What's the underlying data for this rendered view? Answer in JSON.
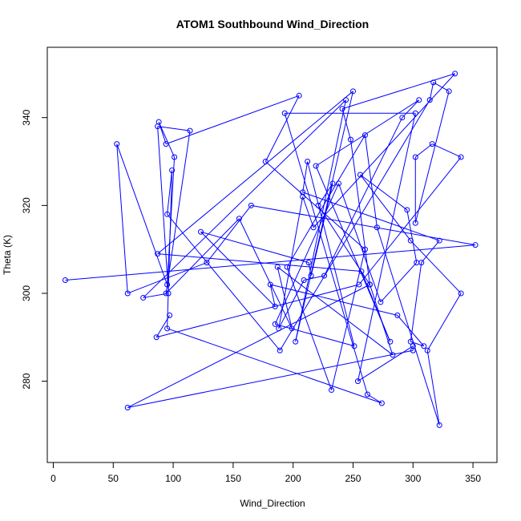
{
  "chart_data": {
    "type": "line",
    "title": "ATOM1 Southbound Wind_Direction",
    "xlabel": "Wind_Direction",
    "ylabel": "Theta (K)",
    "xlim": [
      -5,
      370
    ],
    "ylim": [
      261.5,
      356
    ],
    "xticks": [
      0,
      50,
      100,
      150,
      200,
      250,
      300,
      350
    ],
    "yticks": [
      280,
      300,
      320,
      340
    ],
    "grid": false,
    "legend": "none",
    "markers": "open-circle",
    "line_color": "#0000ff",
    "x": [
      10,
      352,
      165,
      128,
      62,
      53,
      95,
      101,
      88,
      94,
      205,
      177,
      260,
      232,
      195,
      260,
      270,
      322,
      312,
      340,
      298,
      256,
      295,
      303,
      273,
      238,
      185,
      251,
      212,
      208,
      322,
      307,
      298,
      309,
      287,
      181,
      185,
      123,
      213,
      215,
      233,
      221,
      264,
      283,
      187,
      199,
      155,
      94,
      114,
      87,
      96,
      75,
      244,
      202,
      250,
      87,
      257,
      281,
      219,
      305,
      291,
      226,
      209,
      188,
      208,
      217,
      335,
      241,
      248,
      264,
      62,
      300,
      300,
      254,
      302,
      193,
      262,
      274,
      95,
      99,
      95,
      189,
      314,
      317,
      330,
      302,
      302,
      316,
      340,
      255,
      86,
      97
    ],
    "y": [
      303,
      311,
      320,
      307,
      300,
      334,
      302,
      331,
      339,
      334,
      345,
      330,
      310,
      278,
      306,
      336,
      315,
      270,
      287,
      300,
      312,
      327,
      319,
      307,
      298,
      325,
      293,
      288,
      330,
      323,
      312,
      307,
      289,
      288,
      295,
      302,
      297,
      314,
      307,
      304,
      325,
      320,
      302,
      286,
      306,
      292,
      317,
      300,
      337,
      338,
      300,
      299,
      344,
      289,
      346,
      309,
      305,
      289,
      329,
      344,
      340,
      304,
      303,
      292,
      322,
      315,
      350,
      342,
      335,
      302,
      274,
      287,
      288,
      280,
      341,
      341,
      277,
      275,
      292,
      328,
      318,
      287,
      344,
      348,
      346,
      316,
      331,
      334,
      331,
      302,
      290,
      295
    ]
  }
}
